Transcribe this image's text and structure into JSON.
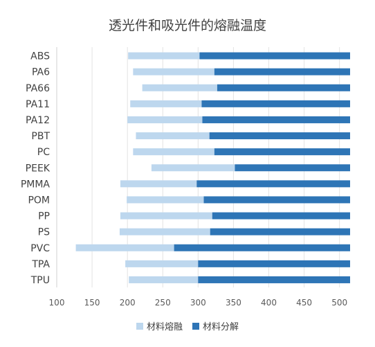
{
  "chart_data": {
    "type": "bar",
    "orientation": "horizontal",
    "stacked": true,
    "title": "透光件和吸光件的熔融温度",
    "categories": [
      "ABS",
      "PA6",
      "PA66",
      "PA11",
      "PA12",
      "PBT",
      "PC",
      "PEEK",
      "PMMA",
      "POM",
      "PP",
      "PS",
      "PVC",
      "TPA",
      "TPU"
    ],
    "series": [
      {
        "name": "材料熔融",
        "color": "#bdd7ee",
        "start": [
          201,
          208,
          221,
          204,
          200,
          212,
          208,
          234,
          190,
          199,
          190,
          189,
          127,
          197,
          202
        ],
        "end": [
          302,
          323,
          327,
          305,
          306,
          316,
          323,
          352,
          298,
          308,
          320,
          317,
          266,
          300,
          300
        ]
      },
      {
        "name": "材料分解",
        "color": "#2e75b6",
        "start": [
          302,
          323,
          327,
          305,
          306,
          316,
          323,
          352,
          298,
          308,
          320,
          317,
          266,
          300,
          300
        ],
        "end": [
          515,
          515,
          515,
          515,
          515,
          515,
          515,
          515,
          515,
          515,
          515,
          515,
          515,
          515,
          515
        ]
      }
    ],
    "xlim": [
      100,
      515
    ],
    "xticks": [
      100,
      150,
      200,
      250,
      300,
      350,
      400,
      450,
      500
    ],
    "grid": true,
    "legend_position": "bottom"
  }
}
